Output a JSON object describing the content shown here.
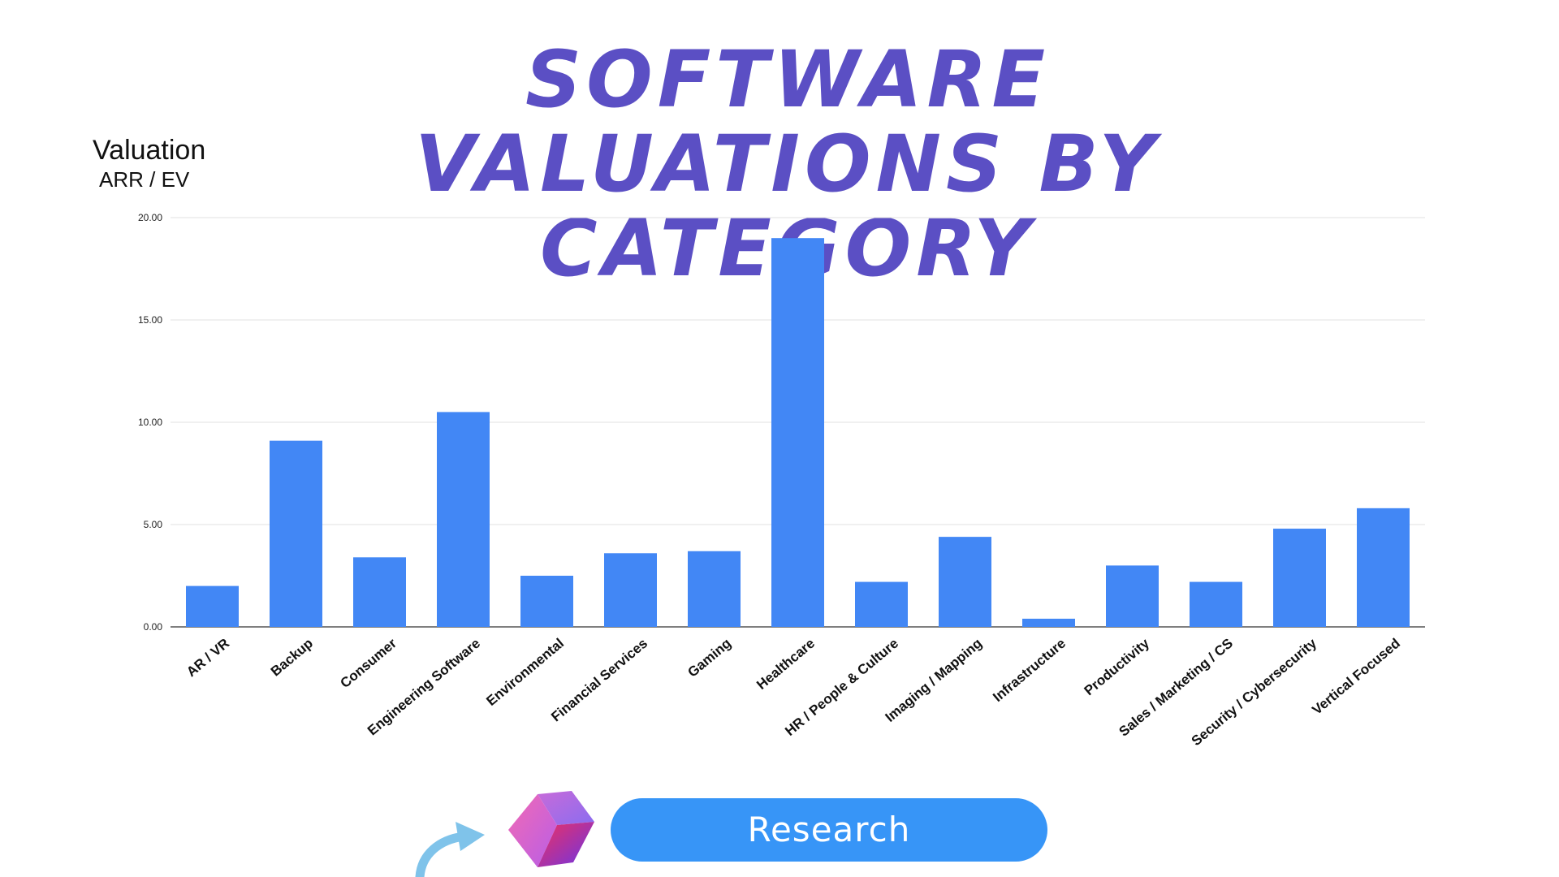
{
  "title": "Software Valuations by Category",
  "y_axis": {
    "label": "Valuation",
    "sublabel": "ARR / EV"
  },
  "cta": {
    "label": "Research"
  },
  "colors": {
    "bar": "#4287f5",
    "title": "#5b4fc4",
    "button": "#3795f7",
    "grid": "#e0e0e0"
  },
  "icons": {
    "logo": "gradient-cube-logo-icon",
    "arrow": "curved-arrow-icon"
  },
  "chart_data": {
    "type": "bar",
    "title": "Software Valuations by Category",
    "ylabel": "Valuation ARR / EV",
    "xlabel": "",
    "ylim": [
      0,
      20
    ],
    "yticks": [
      "0.00",
      "5.00",
      "10.00",
      "15.00",
      "20.00"
    ],
    "grid": true,
    "categories": [
      "AR / VR",
      "Backup",
      "Consumer",
      "Engineering Software",
      "Environmental",
      "Financial Services",
      "Gaming",
      "Healthcare",
      "HR / People & Culture",
      "Imaging / Mapping",
      "Infrastructure",
      "Productivity",
      "Sales / Marketing / CS",
      "Security / Cybersecurity",
      "Vertical Focused"
    ],
    "values": [
      2.0,
      9.1,
      3.4,
      10.5,
      2.5,
      3.6,
      3.7,
      19.0,
      2.2,
      4.4,
      0.4,
      3.0,
      2.2,
      4.8,
      5.8
    ]
  }
}
